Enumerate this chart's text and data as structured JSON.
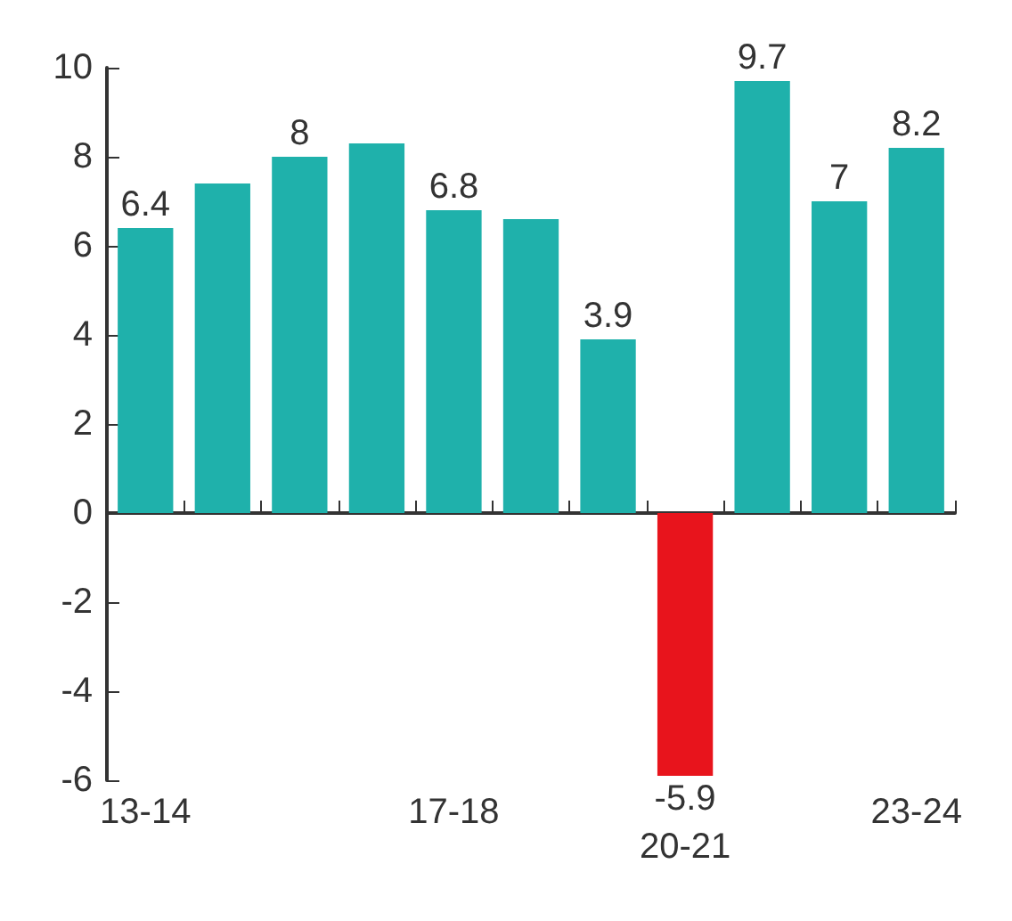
{
  "chart_data": {
    "type": "bar",
    "categories": [
      "13-14",
      null,
      null,
      null,
      "17-18",
      null,
      null,
      "20-21",
      null,
      null,
      "23-24"
    ],
    "values": [
      6.4,
      7.4,
      8,
      8.3,
      6.8,
      6.6,
      3.9,
      -5.9,
      9.7,
      7,
      8.2
    ],
    "value_labels": [
      "6.4",
      null,
      "8",
      null,
      "6.8",
      null,
      "3.9",
      "-5.9",
      "9.7",
      "7",
      "8.2"
    ],
    "colors": [
      "#1fb1ab",
      "#1fb1ab",
      "#1fb1ab",
      "#1fb1ab",
      "#1fb1ab",
      "#1fb1ab",
      "#1fb1ab",
      "#e8141c",
      "#1fb1ab",
      "#1fb1ab",
      "#1fb1ab"
    ],
    "ylim": [
      -6,
      10
    ],
    "yticks": [
      -6,
      -4,
      -2,
      0,
      2,
      4,
      6,
      8,
      10
    ]
  }
}
